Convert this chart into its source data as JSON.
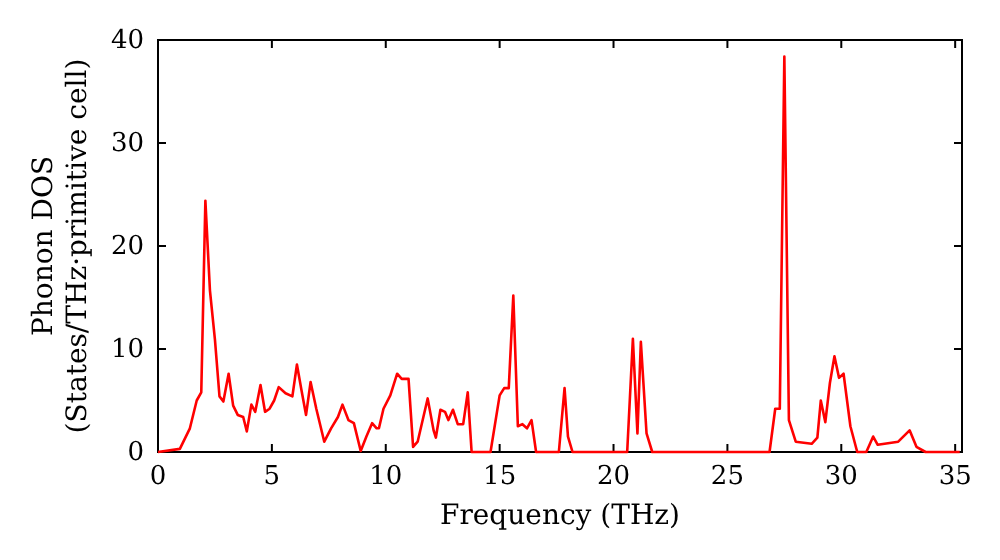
{
  "chart_data": {
    "type": "line",
    "xlabel": "Frequency (THz)",
    "ylabel": "Phonon DOS\n(States/THz·primitive cell)",
    "xlim": [
      0,
      35.3
    ],
    "ylim": [
      0,
      40
    ],
    "xticks": [
      0,
      5,
      10,
      15,
      20,
      25,
      30,
      35
    ],
    "yticks": [
      0,
      10,
      20,
      30,
      40
    ],
    "grid": false,
    "marker": "none",
    "line_style": "solid",
    "series": [
      {
        "color": "#ff0000",
        "x": [
          0,
          0.96,
          1.4,
          1.7,
          1.9,
          2.08,
          2.28,
          2.5,
          2.7,
          2.87,
          3.1,
          3.3,
          3.5,
          3.74,
          3.9,
          4.1,
          4.27,
          4.5,
          4.7,
          4.9,
          5.1,
          5.3,
          5.6,
          5.9,
          6.1,
          6.3,
          6.5,
          6.7,
          6.95,
          7.3,
          7.6,
          7.9,
          8.1,
          8.36,
          8.6,
          8.9,
          9.15,
          9.4,
          9.6,
          9.7,
          9.9,
          10.2,
          10.5,
          10.7,
          11.0,
          11.2,
          11.4,
          11.84,
          12.1,
          12.2,
          12.4,
          12.6,
          12.75,
          12.95,
          13.16,
          13.4,
          13.6,
          13.77,
          14.6,
          15.0,
          15.2,
          15.4,
          15.6,
          15.8,
          16.0,
          16.2,
          16.4,
          16.6,
          17.6,
          17.85,
          18.0,
          18.2,
          20.6,
          20.85,
          21.05,
          21.2,
          21.45,
          21.7,
          26.85,
          27.1,
          27.3,
          27.5,
          27.7,
          28.0,
          28.7,
          28.95,
          29.1,
          29.3,
          29.5,
          29.7,
          29.9,
          30.1,
          30.4,
          30.7,
          31.1,
          31.4,
          31.6,
          32.5,
          33.0,
          33.3,
          33.7,
          35.2
        ],
        "values": [
          0,
          0.3,
          2.3,
          5,
          5.8,
          24.4,
          15.7,
          10.9,
          5.4,
          4.9,
          7.6,
          4.5,
          3.6,
          3.4,
          2.0,
          4.6,
          3.9,
          6.5,
          3.9,
          4.2,
          5.0,
          6.3,
          5.7,
          5.4,
          8.5,
          6.0,
          3.6,
          6.8,
          4.2,
          1.0,
          2.3,
          3.4,
          4.6,
          3.1,
          2.8,
          0.1,
          1.5,
          2.8,
          2.3,
          2.3,
          4.2,
          5.5,
          7.6,
          7.1,
          7.1,
          0.5,
          1.0,
          5.2,
          2.1,
          1.4,
          4.1,
          3.9,
          3.1,
          4.1,
          2.7,
          2.7,
          5.8,
          0,
          0,
          5.5,
          6.2,
          6.2,
          15.2,
          2.5,
          2.7,
          2.3,
          3.1,
          0,
          0,
          6.2,
          1.5,
          0,
          0,
          11.0,
          1.8,
          10.7,
          1.8,
          0,
          0,
          4.2,
          4.2,
          38.4,
          3.1,
          1.0,
          0.8,
          1.4,
          5.0,
          2.9,
          6.7,
          9.3,
          7.2,
          7.6,
          2.5,
          0,
          0,
          1.5,
          0.7,
          1.0,
          2.1,
          0.5,
          0,
          0
        ]
      }
    ]
  }
}
